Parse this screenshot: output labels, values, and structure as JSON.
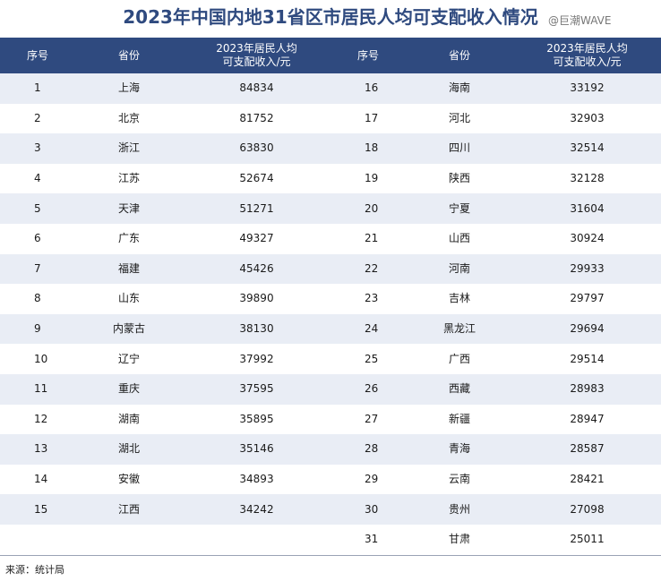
{
  "title": "2023年中国内地31省区市居民人均可支配收入情况",
  "watermark": "@巨潮WAVE",
  "headers": {
    "no": "序号",
    "province": "省份",
    "income_line1": "2023年居民人均",
    "income_line2": "可支配收入/元"
  },
  "rows": [
    {
      "left": {
        "no": "1",
        "province": "上海",
        "income": "84834"
      },
      "right": {
        "no": "16",
        "province": "海南",
        "income": "33192"
      }
    },
    {
      "left": {
        "no": "2",
        "province": "北京",
        "income": "81752"
      },
      "right": {
        "no": "17",
        "province": "河北",
        "income": "32903"
      }
    },
    {
      "left": {
        "no": "3",
        "province": "浙江",
        "income": "63830"
      },
      "right": {
        "no": "18",
        "province": "四川",
        "income": "32514"
      }
    },
    {
      "left": {
        "no": "4",
        "province": "江苏",
        "income": "52674"
      },
      "right": {
        "no": "19",
        "province": "陕西",
        "income": "32128"
      }
    },
    {
      "left": {
        "no": "5",
        "province": "天津",
        "income": "51271"
      },
      "right": {
        "no": "20",
        "province": "宁夏",
        "income": "31604"
      }
    },
    {
      "left": {
        "no": "6",
        "province": "广东",
        "income": "49327"
      },
      "right": {
        "no": "21",
        "province": "山西",
        "income": "30924"
      }
    },
    {
      "left": {
        "no": "7",
        "province": "福建",
        "income": "45426"
      },
      "right": {
        "no": "22",
        "province": "河南",
        "income": "29933"
      }
    },
    {
      "left": {
        "no": "8",
        "province": "山东",
        "income": "39890"
      },
      "right": {
        "no": "23",
        "province": "吉林",
        "income": "29797"
      }
    },
    {
      "left": {
        "no": "9",
        "province": "内蒙古",
        "income": "38130"
      },
      "right": {
        "no": "24",
        "province": "黑龙江",
        "income": "29694"
      }
    },
    {
      "left": {
        "no": "10",
        "province": "辽宁",
        "income": "37992"
      },
      "right": {
        "no": "25",
        "province": "广西",
        "income": "29514"
      }
    },
    {
      "left": {
        "no": "11",
        "province": "重庆",
        "income": "37595"
      },
      "right": {
        "no": "26",
        "province": "西藏",
        "income": "28983"
      }
    },
    {
      "left": {
        "no": "12",
        "province": "湖南",
        "income": "35895"
      },
      "right": {
        "no": "27",
        "province": "新疆",
        "income": "28947"
      }
    },
    {
      "left": {
        "no": "13",
        "province": "湖北",
        "income": "35146"
      },
      "right": {
        "no": "28",
        "province": "青海",
        "income": "28587"
      }
    },
    {
      "left": {
        "no": "14",
        "province": "安徽",
        "income": "34893"
      },
      "right": {
        "no": "29",
        "province": "云南",
        "income": "28421"
      }
    },
    {
      "left": {
        "no": "15",
        "province": "江西",
        "income": "34242"
      },
      "right": {
        "no": "30",
        "province": "贵州",
        "income": "27098"
      }
    },
    {
      "left": {
        "no": "",
        "province": "",
        "income": ""
      },
      "right": {
        "no": "31",
        "province": "甘肃",
        "income": "25011"
      }
    }
  ],
  "colors": {
    "header_bg": "#2f4a7f",
    "title": "#2f4a7f",
    "row_stripe": "#e9edf5"
  },
  "source": "来源：统计局"
}
